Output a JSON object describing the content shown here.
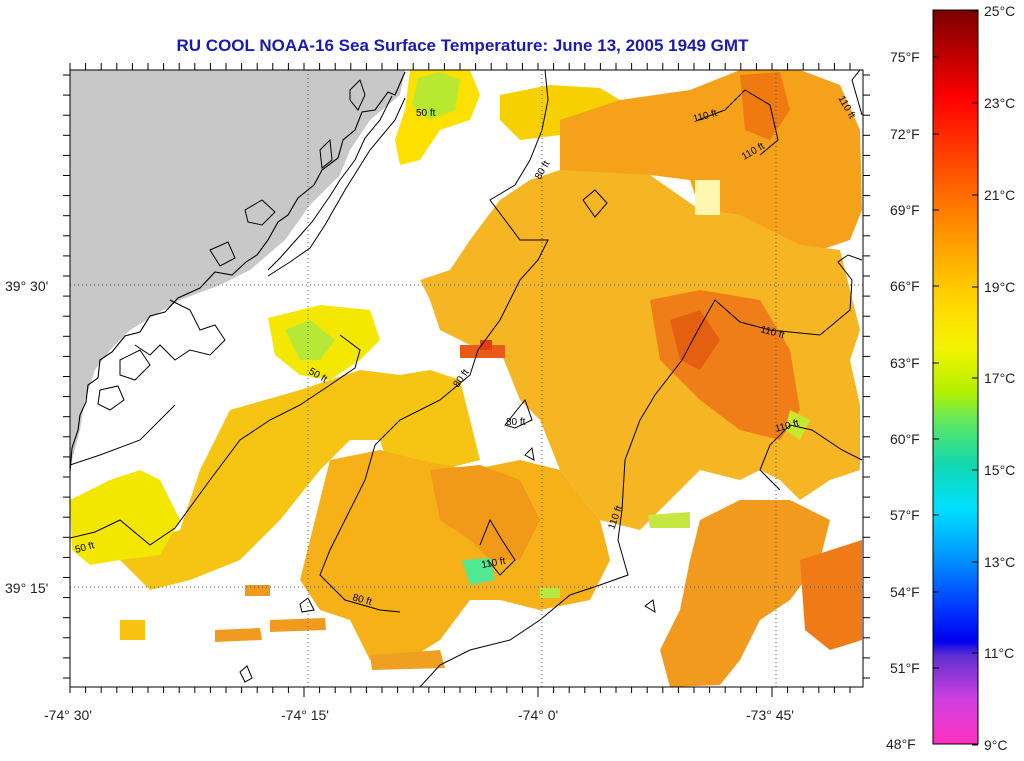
{
  "title": "RU COOL  NOAA-16  Sea Surface Temperature:  June 13, 2005 1949 GMT",
  "map": {
    "lat_labels": [
      "39° 30'",
      "39° 15'"
    ],
    "lon_labels": [
      "-74° 30'",
      "-74° 15'",
      "-74° 0'",
      "-73° 45'"
    ],
    "contour_labels": [
      "50 ft",
      "50 ft",
      "50 ft",
      "80 ft",
      "80 ft",
      "80 ft",
      "80 ft",
      "110 ft",
      "110 ft",
      "110 ft",
      "110 ft",
      "110 ft",
      "110 ft"
    ],
    "land_color": "#c8c8c8",
    "cloud_color": "#ffffff"
  },
  "colorbar": {
    "celsius_labels": [
      "25°C",
      "23°C",
      "21°C",
      "19°C",
      "17°C",
      "15°C",
      "13°C",
      "11°C",
      "9°C"
    ],
    "fahrenheit_labels": [
      "75°F",
      "72°F",
      "69°F",
      "66°F",
      "63°F",
      "60°F",
      "57°F",
      "54°F",
      "51°F",
      "48°F"
    ],
    "range_celsius": [
      9,
      25
    ]
  }
}
